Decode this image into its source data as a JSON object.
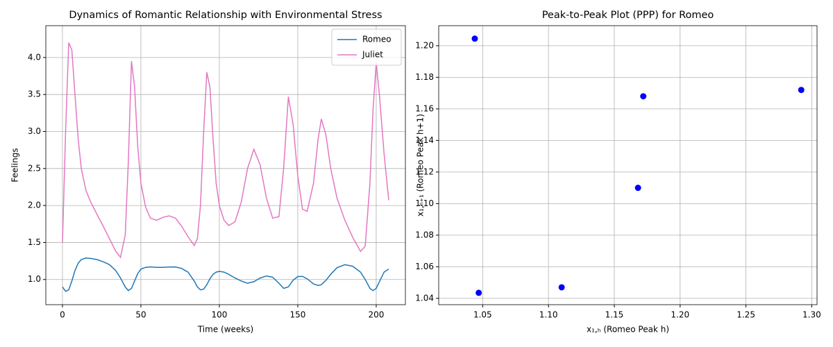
{
  "chart_data": [
    {
      "type": "line",
      "title": "Dynamics of Romantic Relationship with Environmental Stress",
      "xlabel": "Time (weeks)",
      "ylabel": "Feelings",
      "x": [
        0,
        2,
        4,
        6,
        8,
        10,
        12,
        15,
        18,
        22,
        26,
        30,
        34,
        37,
        40,
        42,
        44,
        46,
        48,
        50,
        53,
        56,
        60,
        64,
        68,
        72,
        76,
        80,
        84,
        86,
        88,
        90,
        92,
        94,
        96,
        98,
        100,
        103,
        106,
        110,
        114,
        118,
        122,
        126,
        130,
        134,
        138,
        141,
        144,
        147,
        150,
        153,
        156,
        160,
        163,
        165,
        168,
        171,
        175,
        180,
        185,
        190,
        193,
        196,
        198,
        200,
        202,
        205,
        208
      ],
      "series": [
        {
          "name": "Romeo",
          "color": "#1f77b4",
          "values": [
            0.9,
            0.84,
            0.86,
            0.98,
            1.12,
            1.22,
            1.27,
            1.29,
            1.285,
            1.27,
            1.24,
            1.2,
            1.12,
            1.02,
            0.9,
            0.85,
            0.88,
            0.98,
            1.08,
            1.14,
            1.165,
            1.17,
            1.165,
            1.165,
            1.168,
            1.17,
            1.15,
            1.1,
            0.98,
            0.9,
            0.86,
            0.87,
            0.93,
            1.01,
            1.07,
            1.1,
            1.11,
            1.1,
            1.07,
            1.02,
            0.98,
            0.95,
            0.97,
            1.02,
            1.047,
            1.03,
            0.95,
            0.88,
            0.9,
            0.99,
            1.04,
            1.043,
            1.01,
            0.94,
            0.92,
            0.93,
            0.99,
            1.07,
            1.16,
            1.2,
            1.18,
            1.1,
            1.0,
            0.88,
            0.85,
            0.88,
            0.97,
            1.1,
            1.14
          ]
        },
        {
          "name": "Juliet",
          "color": "#e377c2",
          "values": [
            1.5,
            3.0,
            4.2,
            4.1,
            3.5,
            2.9,
            2.5,
            2.2,
            2.05,
            1.88,
            1.72,
            1.55,
            1.38,
            1.3,
            1.6,
            2.6,
            3.95,
            3.6,
            2.8,
            2.3,
            1.98,
            1.83,
            1.8,
            1.84,
            1.86,
            1.83,
            1.72,
            1.58,
            1.46,
            1.55,
            2.0,
            3.0,
            3.8,
            3.6,
            2.9,
            2.3,
            2.0,
            1.8,
            1.73,
            1.78,
            2.05,
            2.5,
            2.76,
            2.55,
            2.1,
            1.83,
            1.85,
            2.5,
            3.47,
            3.1,
            2.4,
            1.95,
            1.92,
            2.3,
            2.9,
            3.17,
            2.95,
            2.5,
            2.1,
            1.8,
            1.57,
            1.38,
            1.45,
            2.3,
            3.3,
            3.93,
            3.5,
            2.7,
            2.07
          ]
        }
      ],
      "xlim": [
        -10.6,
        218.6
      ],
      "xticks": [
        0,
        50,
        100,
        150,
        200
      ],
      "ylim": [
        0.66,
        4.43
      ],
      "yticks": [
        {
          "value": 1,
          "label": "1.0"
        },
        1.5,
        {
          "value": 2,
          "label": "2.0"
        },
        2.5,
        {
          "value": 3,
          "label": "3.0"
        },
        3.5,
        {
          "value": 4,
          "label": "4.0"
        }
      ],
      "grid": true,
      "legend": "upper right"
    },
    {
      "type": "scatter",
      "title": "Peak-to-Peak Plot (PPP) for Romeo",
      "xlabel": "x₁,ₕ (Romeo Peak h)",
      "ylabel": "x₁,ₕ₊₁ (Romeo Peak h+1)",
      "color": "#0000ff",
      "x": [
        1.044,
        1.047,
        1.11,
        1.168,
        1.172,
        1.292
      ],
      "values": [
        1.2045,
        1.0435,
        1.047,
        1.11,
        1.168,
        1.172
      ],
      "xlim": [
        1.0166,
        1.304
      ],
      "xticks": [
        1.05,
        {
          "value": 1.1,
          "label": "1.10"
        },
        1.15,
        {
          "value": 1.2,
          "label": "1.20"
        },
        1.25,
        {
          "value": 1.3,
          "label": "1.30"
        }
      ],
      "ylim": [
        1.036,
        1.2127
      ],
      "yticks": [
        1.04,
        1.06,
        1.08,
        {
          "value": 1.1,
          "label": "1.10"
        },
        1.12,
        1.14,
        1.16,
        1.18,
        {
          "value": 1.2,
          "label": "1.20"
        }
      ],
      "grid": true
    }
  ]
}
